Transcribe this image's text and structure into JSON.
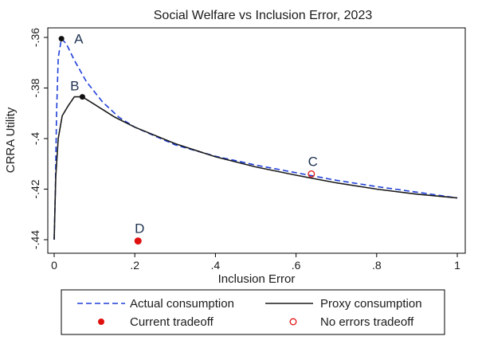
{
  "chart_data": {
    "type": "line",
    "title": "Social Welfare vs Inclusion Error, 2023",
    "xlabel": "Inclusion Error",
    "ylabel": "CRRA Utility",
    "xlim": [
      0,
      1
    ],
    "ylim": [
      -0.445,
      -0.357
    ],
    "x_ticks": [
      {
        "value": 0,
        "label": "0"
      },
      {
        "value": 0.2,
        "label": ".2"
      },
      {
        "value": 0.4,
        "label": ".4"
      },
      {
        "value": 0.6,
        "label": ".6"
      },
      {
        "value": 0.8,
        "label": ".8"
      },
      {
        "value": 1,
        "label": "1"
      }
    ],
    "y_ticks": [
      {
        "value": -0.36,
        "label": "-.36"
      },
      {
        "value": -0.38,
        "label": "-.38"
      },
      {
        "value": -0.4,
        "label": "-.4"
      },
      {
        "value": -0.42,
        "label": "-.42"
      },
      {
        "value": -0.44,
        "label": "-.44"
      }
    ],
    "grid": false,
    "legend_position": "bottom",
    "series": [
      {
        "name": "Actual consumption",
        "style": "dashed",
        "color": "#1f3fd8",
        "points": [
          [
            0.0,
            -0.44
          ],
          [
            0.003,
            -0.42
          ],
          [
            0.006,
            -0.39
          ],
          [
            0.01,
            -0.368
          ],
          [
            0.018,
            -0.3605
          ],
          [
            0.03,
            -0.3625
          ],
          [
            0.05,
            -0.369
          ],
          [
            0.08,
            -0.3775
          ],
          [
            0.12,
            -0.3855
          ],
          [
            0.16,
            -0.3915
          ],
          [
            0.2,
            -0.3955
          ],
          [
            0.3,
            -0.4025
          ],
          [
            0.4,
            -0.407
          ],
          [
            0.5,
            -0.4105
          ],
          [
            0.6,
            -0.4135
          ],
          [
            0.7,
            -0.4165
          ],
          [
            0.8,
            -0.419
          ],
          [
            0.9,
            -0.4212
          ],
          [
            1.0,
            -0.4235
          ]
        ]
      },
      {
        "name": "Proxy consumption",
        "style": "solid",
        "color": "#1a1a1a",
        "points": [
          [
            0.0,
            -0.44
          ],
          [
            0.004,
            -0.415
          ],
          [
            0.01,
            -0.4
          ],
          [
            0.02,
            -0.391
          ],
          [
            0.035,
            -0.387
          ],
          [
            0.05,
            -0.3835
          ],
          [
            0.07,
            -0.3835
          ],
          [
            0.1,
            -0.3865
          ],
          [
            0.15,
            -0.3915
          ],
          [
            0.2,
            -0.3955
          ],
          [
            0.3,
            -0.402
          ],
          [
            0.4,
            -0.4072
          ],
          [
            0.5,
            -0.4112
          ],
          [
            0.6,
            -0.4145
          ],
          [
            0.7,
            -0.4175
          ],
          [
            0.8,
            -0.42
          ],
          [
            0.9,
            -0.422
          ],
          [
            1.0,
            -0.4235
          ]
        ]
      }
    ],
    "markers": [
      {
        "label": "A",
        "x": 0.018,
        "y": -0.3605,
        "kind": "filled-small",
        "color": "#111111"
      },
      {
        "label": "B",
        "x": 0.07,
        "y": -0.3835,
        "kind": "filled-small",
        "color": "#111111"
      },
      {
        "label": "C",
        "x": 0.638,
        "y": -0.414,
        "kind": "hollow",
        "color": "#e01010"
      },
      {
        "label": "D",
        "x": 0.208,
        "y": -0.4405,
        "kind": "filled",
        "color": "#e01010"
      }
    ],
    "legend": [
      {
        "label": "Actual consumption",
        "symbol": "dashed-line",
        "color": "#1f3fd8"
      },
      {
        "label": "Proxy consumption",
        "symbol": "solid-line",
        "color": "#1a1a1a"
      },
      {
        "label": "Current tradeoff",
        "symbol": "filled-dot",
        "color": "#e01010"
      },
      {
        "label": "No errors tradeoff",
        "symbol": "hollow-dot",
        "color": "#e01010"
      }
    ]
  }
}
